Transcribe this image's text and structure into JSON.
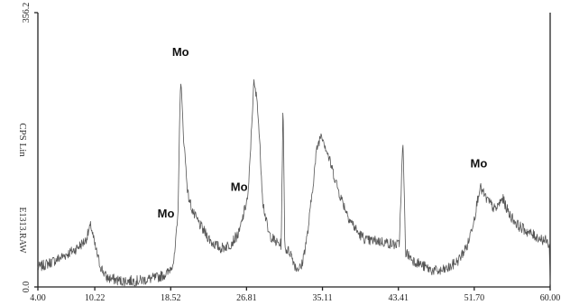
{
  "chart_data": {
    "type": "line",
    "title": "",
    "xlabel": "",
    "ylabel": "CPS Lin",
    "file_label": "E1313.RAW",
    "xlim": [
      4.0,
      60.0
    ],
    "ylim": [
      0.0,
      356.2
    ],
    "x_ticks": [
      "4.00",
      "10.22",
      "18.52",
      "26.81",
      "35.11",
      "43.41",
      "51.70",
      "60.00"
    ],
    "y_ticks": [
      "0.0",
      "356.2"
    ],
    "grid": false,
    "legend": "none",
    "series": [
      {
        "color": "#555555",
        "points": [
          [
            4.0,
            25
          ],
          [
            6.0,
            35
          ],
          [
            8.0,
            48
          ],
          [
            9.2,
            60
          ],
          [
            9.8,
            80
          ],
          [
            10.2,
            55
          ],
          [
            10.8,
            28
          ],
          [
            11.5,
            12
          ],
          [
            13.0,
            8
          ],
          [
            15.0,
            8
          ],
          [
            17.0,
            12
          ],
          [
            18.2,
            18
          ],
          [
            18.9,
            35
          ],
          [
            19.3,
            90
          ],
          [
            19.6,
            275
          ],
          [
            19.9,
            200
          ],
          [
            20.4,
            120
          ],
          [
            21.0,
            95
          ],
          [
            22.0,
            75
          ],
          [
            23.0,
            58
          ],
          [
            24.0,
            50
          ],
          [
            25.0,
            55
          ],
          [
            26.0,
            70
          ],
          [
            27.0,
            120
          ],
          [
            27.6,
            265
          ],
          [
            28.0,
            240
          ],
          [
            28.6,
            110
          ],
          [
            29.2,
            70
          ],
          [
            30.0,
            58
          ],
          [
            30.6,
            55
          ],
          [
            30.8,
            240
          ],
          [
            31.0,
            50
          ],
          [
            31.6,
            45
          ],
          [
            32.2,
            25
          ],
          [
            32.8,
            25
          ],
          [
            33.5,
            70
          ],
          [
            34.5,
            180
          ],
          [
            35.0,
            200
          ],
          [
            36.0,
            160
          ],
          [
            37.0,
            120
          ],
          [
            38.0,
            90
          ],
          [
            39.0,
            70
          ],
          [
            40.0,
            60
          ],
          [
            41.0,
            60
          ],
          [
            42.0,
            58
          ],
          [
            43.0,
            55
          ],
          [
            43.5,
            55
          ],
          [
            43.9,
            190
          ],
          [
            44.2,
            45
          ],
          [
            45.0,
            35
          ],
          [
            46.0,
            28
          ],
          [
            47.0,
            22
          ],
          [
            48.0,
            20
          ],
          [
            49.0,
            25
          ],
          [
            50.0,
            35
          ],
          [
            51.0,
            55
          ],
          [
            51.8,
            95
          ],
          [
            52.3,
            130
          ],
          [
            53.0,
            115
          ],
          [
            54.0,
            100
          ],
          [
            54.8,
            115
          ],
          [
            55.5,
            95
          ],
          [
            56.5,
            80
          ],
          [
            58.0,
            68
          ],
          [
            59.5,
            60
          ],
          [
            59.9,
            55
          ],
          [
            60.0,
            3
          ]
        ]
      }
    ],
    "annotations": [
      {
        "text": "Mo",
        "x": 19.6,
        "y": 300
      },
      {
        "text": "Mo",
        "x": 18.0,
        "y": 90
      },
      {
        "text": "Mo",
        "x": 26.0,
        "y": 125
      },
      {
        "text": "Mo",
        "x": 52.2,
        "y": 155
      }
    ]
  }
}
